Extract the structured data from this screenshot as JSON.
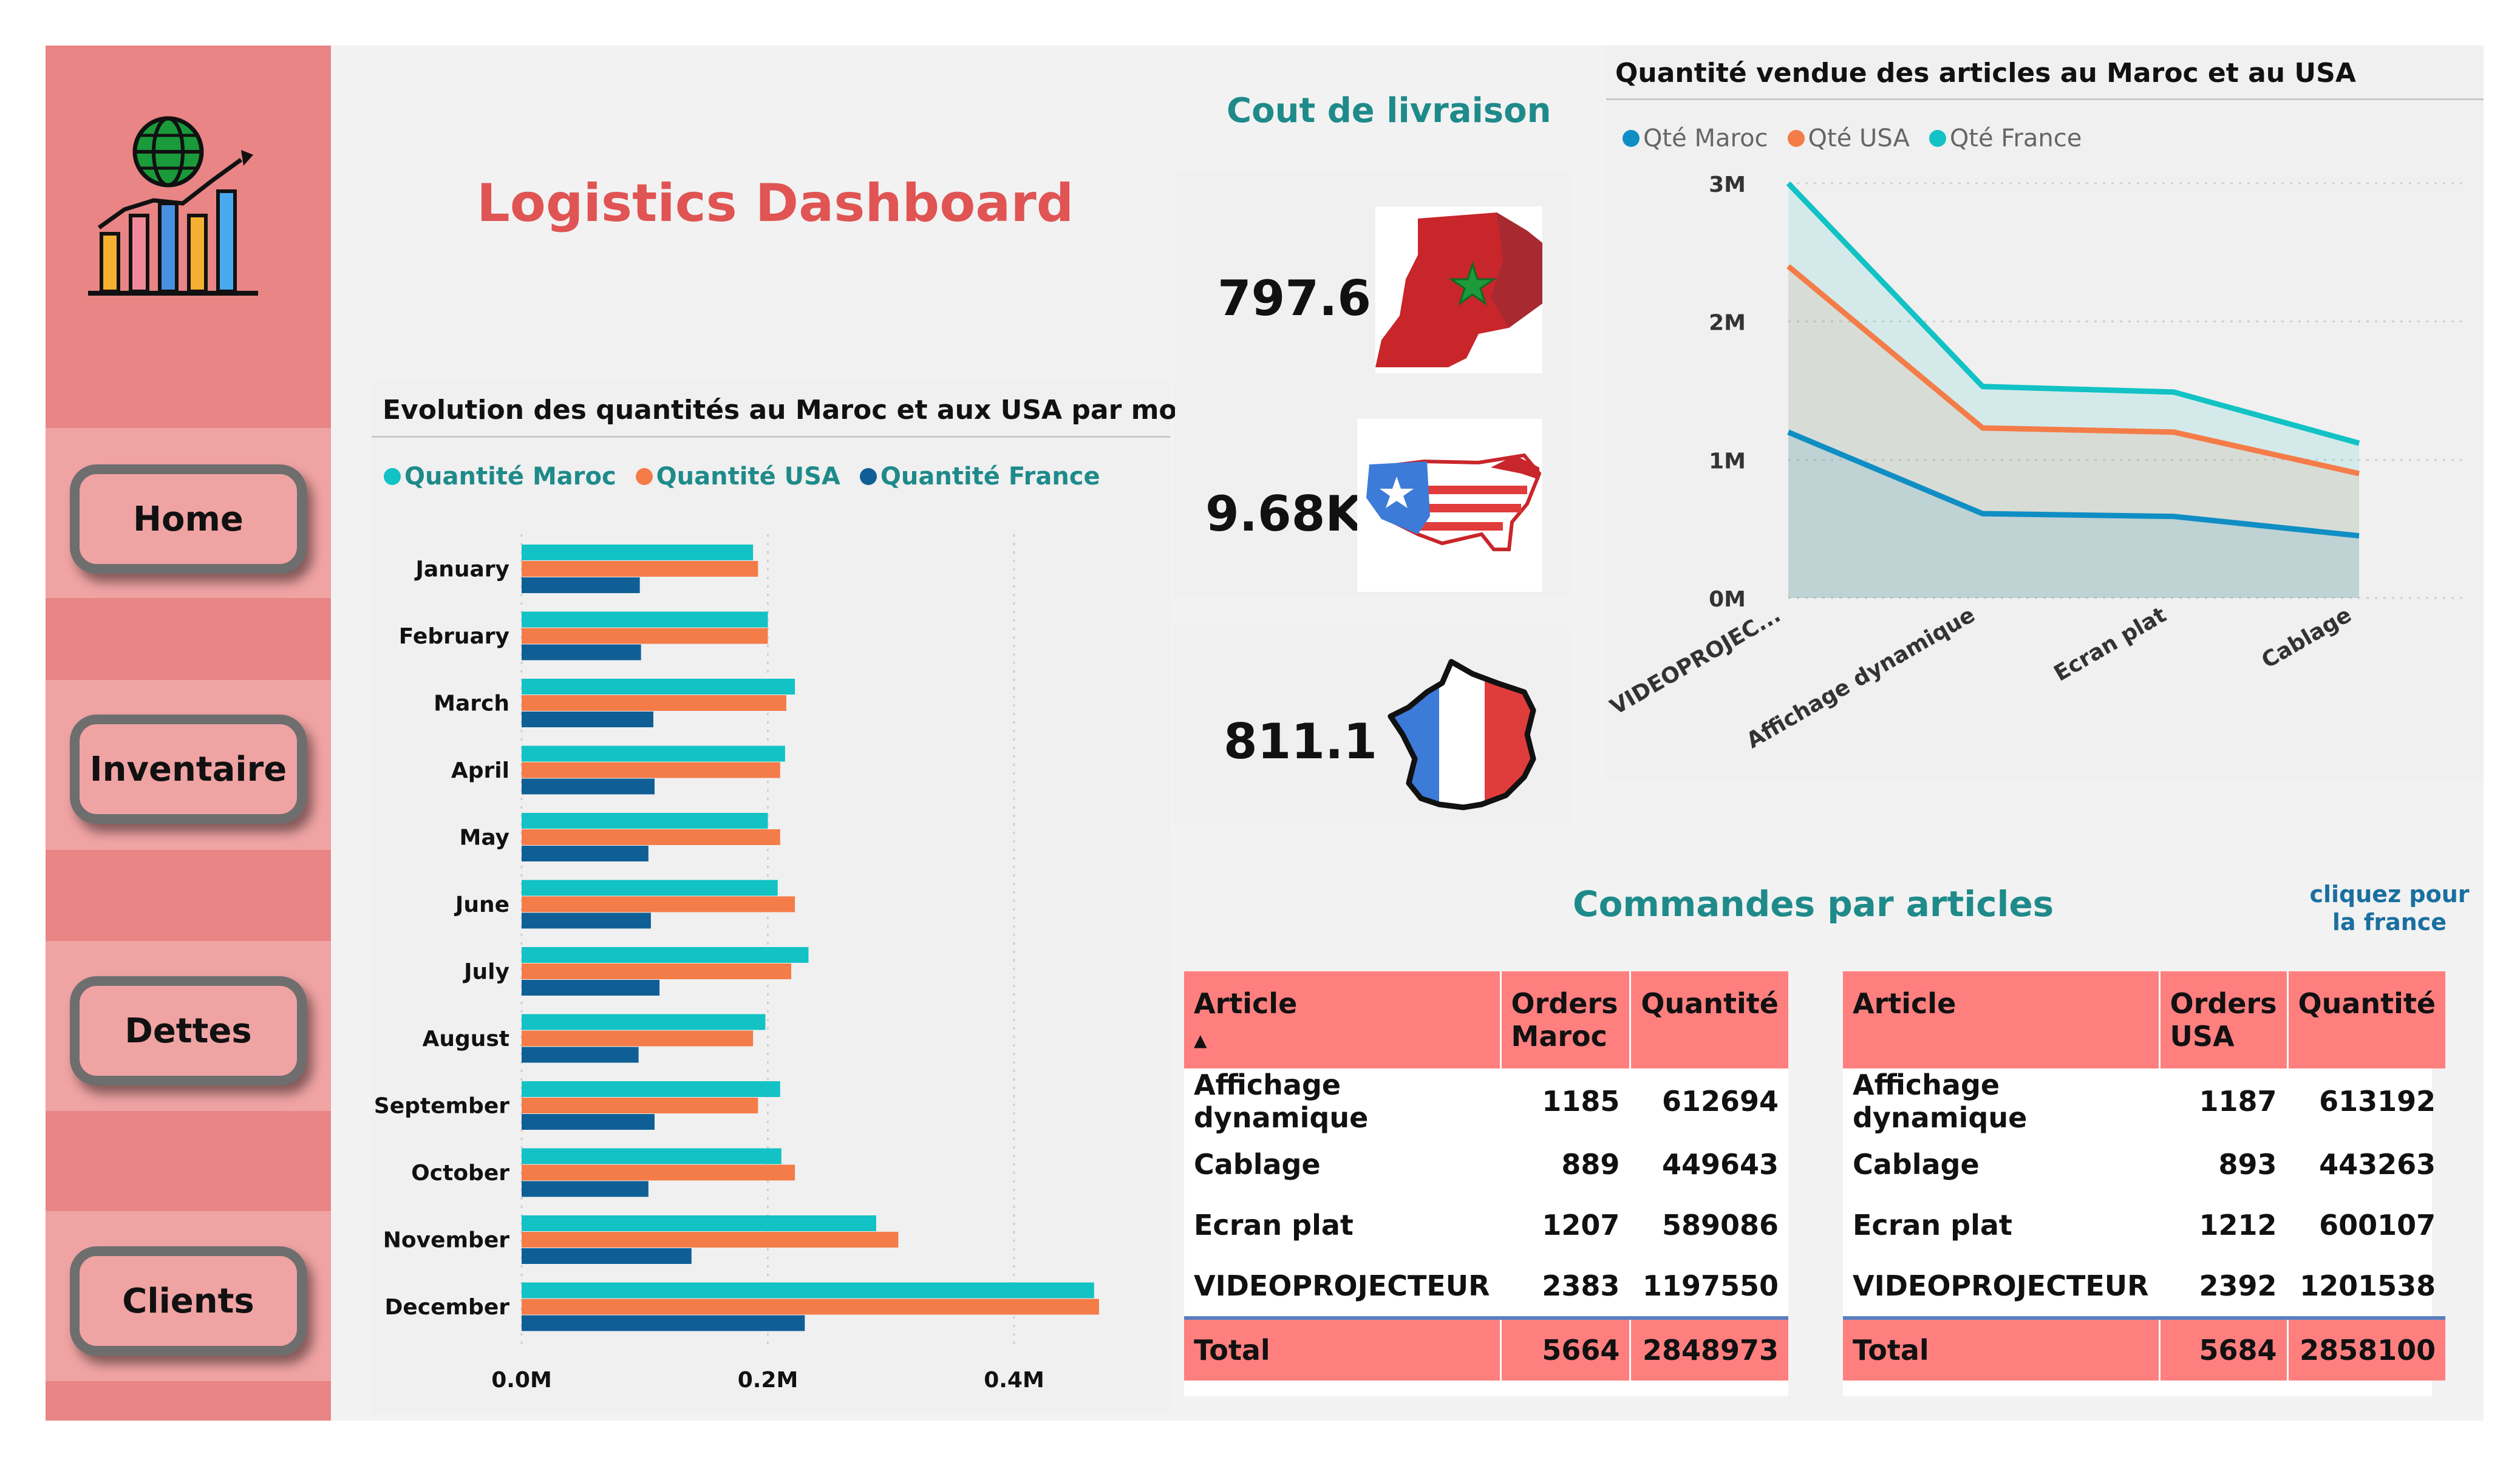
{
  "sidebar": {
    "nav": [
      {
        "label": "Home"
      },
      {
        "label": "Inventaire"
      },
      {
        "label": "Dettes"
      },
      {
        "label": "Clients"
      }
    ]
  },
  "header": {
    "title": "Logistics Dashboard"
  },
  "delivery": {
    "title": "Cout de livraison",
    "maroc": "797.6",
    "usa": "9.68K",
    "france": "811.1"
  },
  "bar_chart": {
    "title": "Evolution des quantités au Maroc et aux USA par mois",
    "legend": [
      "Quantité Maroc",
      "Quantité USA",
      "Quantité France"
    ],
    "x_ticks": [
      "0.0M",
      "0.2M",
      "0.4M"
    ]
  },
  "line_chart": {
    "title": "Quantité vendue des articles au Maroc et au USA",
    "legend": [
      "Qté Maroc",
      "Qté USA",
      "Qté France"
    ],
    "y_ticks": [
      "3M",
      "2M",
      "1M",
      "0M"
    ],
    "x_ticks": [
      "VIDEOPROJEC...",
      "Affichage dynamique",
      "Ecran plat",
      "Cablage"
    ]
  },
  "orders": {
    "title": "Commandes par articles",
    "link": "cliquez pour la france",
    "maroc_table": {
      "headers": [
        "Article",
        "Orders Maroc",
        "Quantité"
      ],
      "rows": [
        [
          "Affichage dynamique",
          "1185",
          "612694"
        ],
        [
          "Cablage",
          "889",
          "449643"
        ],
        [
          "Ecran plat",
          "1207",
          "589086"
        ],
        [
          "VIDEOPROJECTEUR",
          "2383",
          "1197550"
        ]
      ],
      "total": [
        "Total",
        "5664",
        "2848973"
      ]
    },
    "usa_table": {
      "headers": [
        "Article",
        "Orders USA",
        "Quantité"
      ],
      "rows": [
        [
          "Affichage dynamique",
          "1187",
          "613192"
        ],
        [
          "Cablage",
          "893",
          "443263"
        ],
        [
          "Ecran plat",
          "1212",
          "600107"
        ],
        [
          "VIDEOPROJECTEUR",
          "2392",
          "1201538"
        ]
      ],
      "total": [
        "Total",
        "5684",
        "2858100"
      ]
    }
  },
  "colors": {
    "maroc": "#12c2c4",
    "usa": "#f47c48",
    "france": "#0f5f96",
    "maroc_line": "#0f8ec4",
    "france_line": "#12c2c4",
    "title_red": "#e05454",
    "teal": "#1f8a8a"
  },
  "chart_data": [
    {
      "type": "bar",
      "orientation": "horizontal",
      "title": "Evolution des quantités au Maroc et aux USA par mois",
      "categories": [
        "January",
        "February",
        "March",
        "April",
        "May",
        "June",
        "July",
        "August",
        "September",
        "October",
        "November",
        "December"
      ],
      "series": [
        {
          "name": "Quantité Maroc",
          "values": [
            0.188,
            0.2,
            0.222,
            0.214,
            0.2,
            0.208,
            0.233,
            0.198,
            0.21,
            0.211,
            0.288,
            0.465
          ]
        },
        {
          "name": "Quantité USA",
          "values": [
            0.192,
            0.2,
            0.215,
            0.21,
            0.21,
            0.222,
            0.219,
            0.188,
            0.192,
            0.222,
            0.306,
            0.469
          ]
        },
        {
          "name": "Quantité France",
          "values": [
            0.096,
            0.097,
            0.107,
            0.108,
            0.103,
            0.105,
            0.112,
            0.095,
            0.108,
            0.103,
            0.138,
            0.23
          ]
        }
      ],
      "xlim": [
        0,
        0.5
      ],
      "x_unit": "M",
      "grid": true,
      "legend_position": "top-left"
    },
    {
      "type": "area",
      "title": "Quantité vendue des articles au Maroc et au USA",
      "categories": [
        "VIDEOPROJEC...",
        "Affichage dynamique",
        "Ecran plat",
        "Cablage"
      ],
      "series": [
        {
          "name": "Qté Maroc",
          "values": [
            1.2,
            0.61,
            0.59,
            0.45
          ]
        },
        {
          "name": "Qté USA",
          "values": [
            2.4,
            1.23,
            1.2,
            0.9
          ]
        },
        {
          "name": "Qté France",
          "values": [
            3.0,
            1.53,
            1.49,
            1.12
          ]
        }
      ],
      "ylim": [
        0,
        3
      ],
      "y_unit": "M",
      "grid": true,
      "legend_position": "top-left"
    }
  ]
}
